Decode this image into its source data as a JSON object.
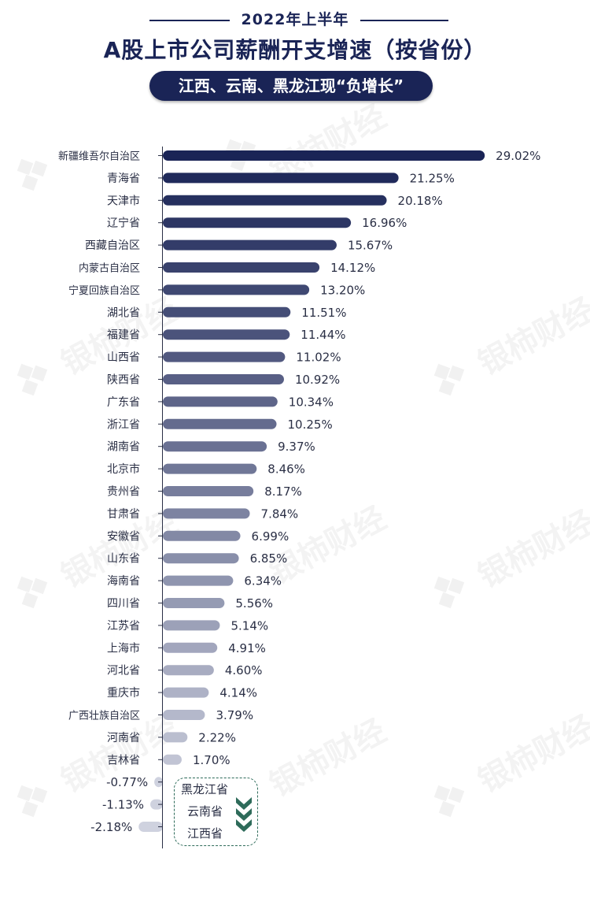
{
  "header": {
    "period": "2022年上半年",
    "title": "A股上市公司薪酬开支增速（按省份）",
    "subtitle": "江西、云南、黑龙江现“负增长”"
  },
  "watermark": "银柿财经",
  "negative_group": {
    "names": [
      "黑龙江省",
      "云南省",
      "江西省"
    ]
  },
  "colors": {
    "dark_navy": "#1a2456",
    "light_bar": "#cfd2df",
    "accent_green": "#2e6b5a"
  },
  "chart_data": {
    "type": "bar",
    "orientation": "horizontal",
    "title": "A股上市公司薪酬开支增速（按省份）",
    "categories": [
      "新疆维吾尔自治区",
      "青海省",
      "天津市",
      "辽宁省",
      "西藏自治区",
      "内蒙古自治区",
      "宁夏回族自治区",
      "湖北省",
      "福建省",
      "山西省",
      "陕西省",
      "广东省",
      "浙江省",
      "湖南省",
      "北京市",
      "贵州省",
      "甘肃省",
      "安徽省",
      "山东省",
      "海南省",
      "四川省",
      "江苏省",
      "上海市",
      "河北省",
      "重庆市",
      "广西壮族自治区",
      "河南省",
      "吉林省",
      "黑龙江省",
      "云南省",
      "江西省"
    ],
    "category_labels": [
      "新疆维吾尔自治区",
      "青海省",
      "天津市",
      "辽宁省",
      "西藏自治区",
      "内蒙古自治区",
      "宁夏回族自治区",
      "湖北省",
      "福建省",
      "山西省",
      "陕西省",
      "广东省",
      "浙江省",
      "湖南省",
      "北京市",
      "贵州省",
      "甘肃省",
      "安徽省",
      "山东省",
      "海南省",
      "四川省",
      "江苏省",
      "上海市",
      "河北省",
      "重庆市",
      "广西壮族自治区",
      "河南省",
      "吉林省",
      "",
      "",
      ""
    ],
    "values": [
      29.02,
      21.25,
      20.18,
      16.96,
      15.67,
      14.12,
      13.2,
      11.51,
      11.44,
      11.02,
      10.92,
      10.34,
      10.25,
      9.37,
      8.46,
      8.17,
      7.84,
      6.99,
      6.85,
      6.34,
      5.56,
      5.14,
      4.91,
      4.6,
      4.14,
      3.79,
      2.22,
      1.7,
      -0.77,
      -1.13,
      -2.18
    ],
    "value_labels": [
      "29.02%",
      "21.25%",
      "20.18%",
      "16.96%",
      "15.67%",
      "14.12%",
      "13.20%",
      "11.51%",
      "11.44%",
      "11.02%",
      "10.92%",
      "10.34%",
      "10.25%",
      "9.37%",
      "8.46%",
      "8.17%",
      "7.84%",
      "6.99%",
      "6.85%",
      "6.34%",
      "5.56%",
      "5.14%",
      "4.91%",
      "4.60%",
      "4.14%",
      "3.79%",
      "2.22%",
      "1.70%",
      "-0.77%",
      "-1.13%",
      "-2.18%"
    ],
    "unit": "%",
    "grid": false,
    "legend": "none"
  }
}
